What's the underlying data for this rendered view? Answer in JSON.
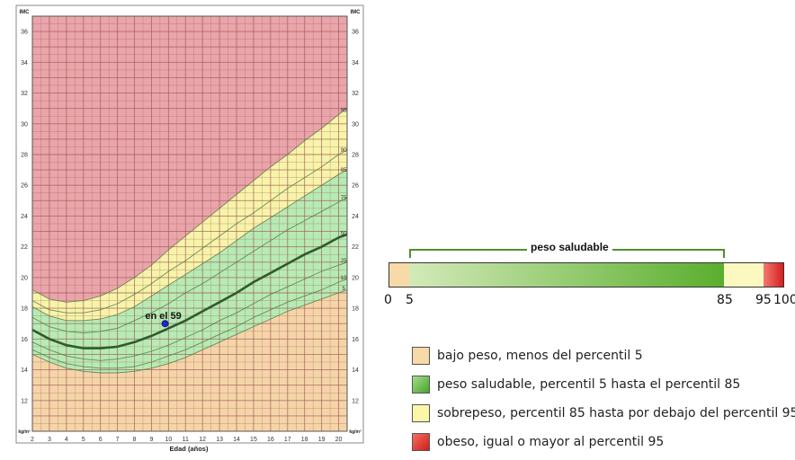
{
  "chart_data": {
    "type": "line",
    "title": "",
    "xlabel": "Edad (años)",
    "ylabel_left": "IMC",
    "ylabel_right": "IMC",
    "unit_label_left": "kg/m²",
    "unit_label_right": "kg/m²",
    "xlim": [
      2,
      20.5
    ],
    "ylim": [
      10,
      37
    ],
    "x_ticks": [
      "2",
      "3",
      "4",
      "5",
      "6",
      "7",
      "8",
      "9",
      "10",
      "11",
      "12",
      "13",
      "14",
      "15",
      "16",
      "17",
      "18",
      "19",
      "20"
    ],
    "y_ticks": [
      "12",
      "14",
      "16",
      "18",
      "20",
      "22",
      "24",
      "26",
      "28",
      "30",
      "32",
      "34",
      "36"
    ],
    "x": [
      2,
      3,
      4,
      5,
      6,
      7,
      8,
      9,
      10,
      11,
      12,
      13,
      14,
      15,
      16,
      17,
      18,
      19,
      20,
      20.5
    ],
    "series": [
      {
        "name": "5",
        "values": [
          15.0,
          14.5,
          14.1,
          13.9,
          13.8,
          13.8,
          13.9,
          14.1,
          14.4,
          14.8,
          15.3,
          15.8,
          16.3,
          16.8,
          17.3,
          17.8,
          18.2,
          18.6,
          19.0,
          19.2
        ]
      },
      {
        "name": "10",
        "values": [
          15.3,
          14.8,
          14.4,
          14.2,
          14.1,
          14.1,
          14.2,
          14.5,
          14.9,
          15.3,
          15.8,
          16.3,
          16.8,
          17.4,
          17.9,
          18.4,
          18.8,
          19.2,
          19.7,
          19.9
        ]
      },
      {
        "name": "25",
        "values": [
          15.8,
          15.3,
          14.9,
          14.7,
          14.6,
          14.7,
          14.9,
          15.2,
          15.6,
          16.1,
          16.6,
          17.2,
          17.7,
          18.3,
          18.9,
          19.4,
          19.9,
          20.4,
          20.8,
          21.0
        ]
      },
      {
        "name": "50",
        "values": [
          16.6,
          16.0,
          15.6,
          15.4,
          15.4,
          15.5,
          15.8,
          16.2,
          16.7,
          17.2,
          17.8,
          18.4,
          19.0,
          19.7,
          20.3,
          20.9,
          21.5,
          22.0,
          22.6,
          22.8
        ]
      },
      {
        "name": "75",
        "values": [
          17.4,
          16.8,
          16.5,
          16.4,
          16.5,
          16.7,
          17.2,
          17.7,
          18.3,
          19.0,
          19.6,
          20.3,
          21.0,
          21.7,
          22.4,
          23.1,
          23.7,
          24.3,
          24.9,
          25.2
        ]
      },
      {
        "name": "85",
        "values": [
          18.1,
          17.5,
          17.2,
          17.2,
          17.3,
          17.6,
          18.1,
          18.8,
          19.5,
          20.2,
          20.9,
          21.6,
          22.4,
          23.2,
          23.9,
          24.6,
          25.3,
          26.0,
          26.7,
          27.0
        ]
      },
      {
        "name": "90",
        "values": [
          18.5,
          17.9,
          17.7,
          17.7,
          17.9,
          18.3,
          18.9,
          19.6,
          20.4,
          21.1,
          21.9,
          22.7,
          23.5,
          24.2,
          25.0,
          25.8,
          26.5,
          27.2,
          28.0,
          28.3
        ]
      },
      {
        "name": "95",
        "values": [
          19.2,
          18.6,
          18.4,
          18.5,
          18.8,
          19.3,
          20.0,
          20.8,
          21.8,
          22.7,
          23.6,
          24.5,
          25.4,
          26.3,
          27.2,
          28.0,
          28.9,
          29.7,
          30.6,
          31.0
        ]
      }
    ],
    "point": {
      "x": 9.8,
      "y": 17.0,
      "label": "en el 59"
    },
    "colors": {
      "underweight": "#f5d5a8",
      "healthy": "#b6ebb3",
      "overweight": "#f7f4a9",
      "obese": "#eaa5aa",
      "grid": "#a05a5a",
      "median": "#2f5a2f",
      "point": "#1a28c8"
    }
  },
  "percentile_bar": {
    "bracket_label": "peso saludable",
    "ticks": [
      {
        "label": "0",
        "value": 0
      },
      {
        "label": "5",
        "value": 5
      },
      {
        "label": "85",
        "value": 85
      },
      {
        "label": "95",
        "value": 95
      },
      {
        "label": "100",
        "value": 100
      }
    ]
  },
  "legend": [
    {
      "label": "bajo peso, menos del percentil 5",
      "color": "#f8d9a8"
    },
    {
      "label": "peso saludable, percentil 5 hasta el percentil 85",
      "color": "#6cc24a"
    },
    {
      "label": "sobrepeso, percentil 85 hasta por debajo del percentil 95",
      "color": "#fbf7a6"
    },
    {
      "label": "obeso, igual o mayor al percentil 95",
      "color": "#e3322a"
    }
  ]
}
